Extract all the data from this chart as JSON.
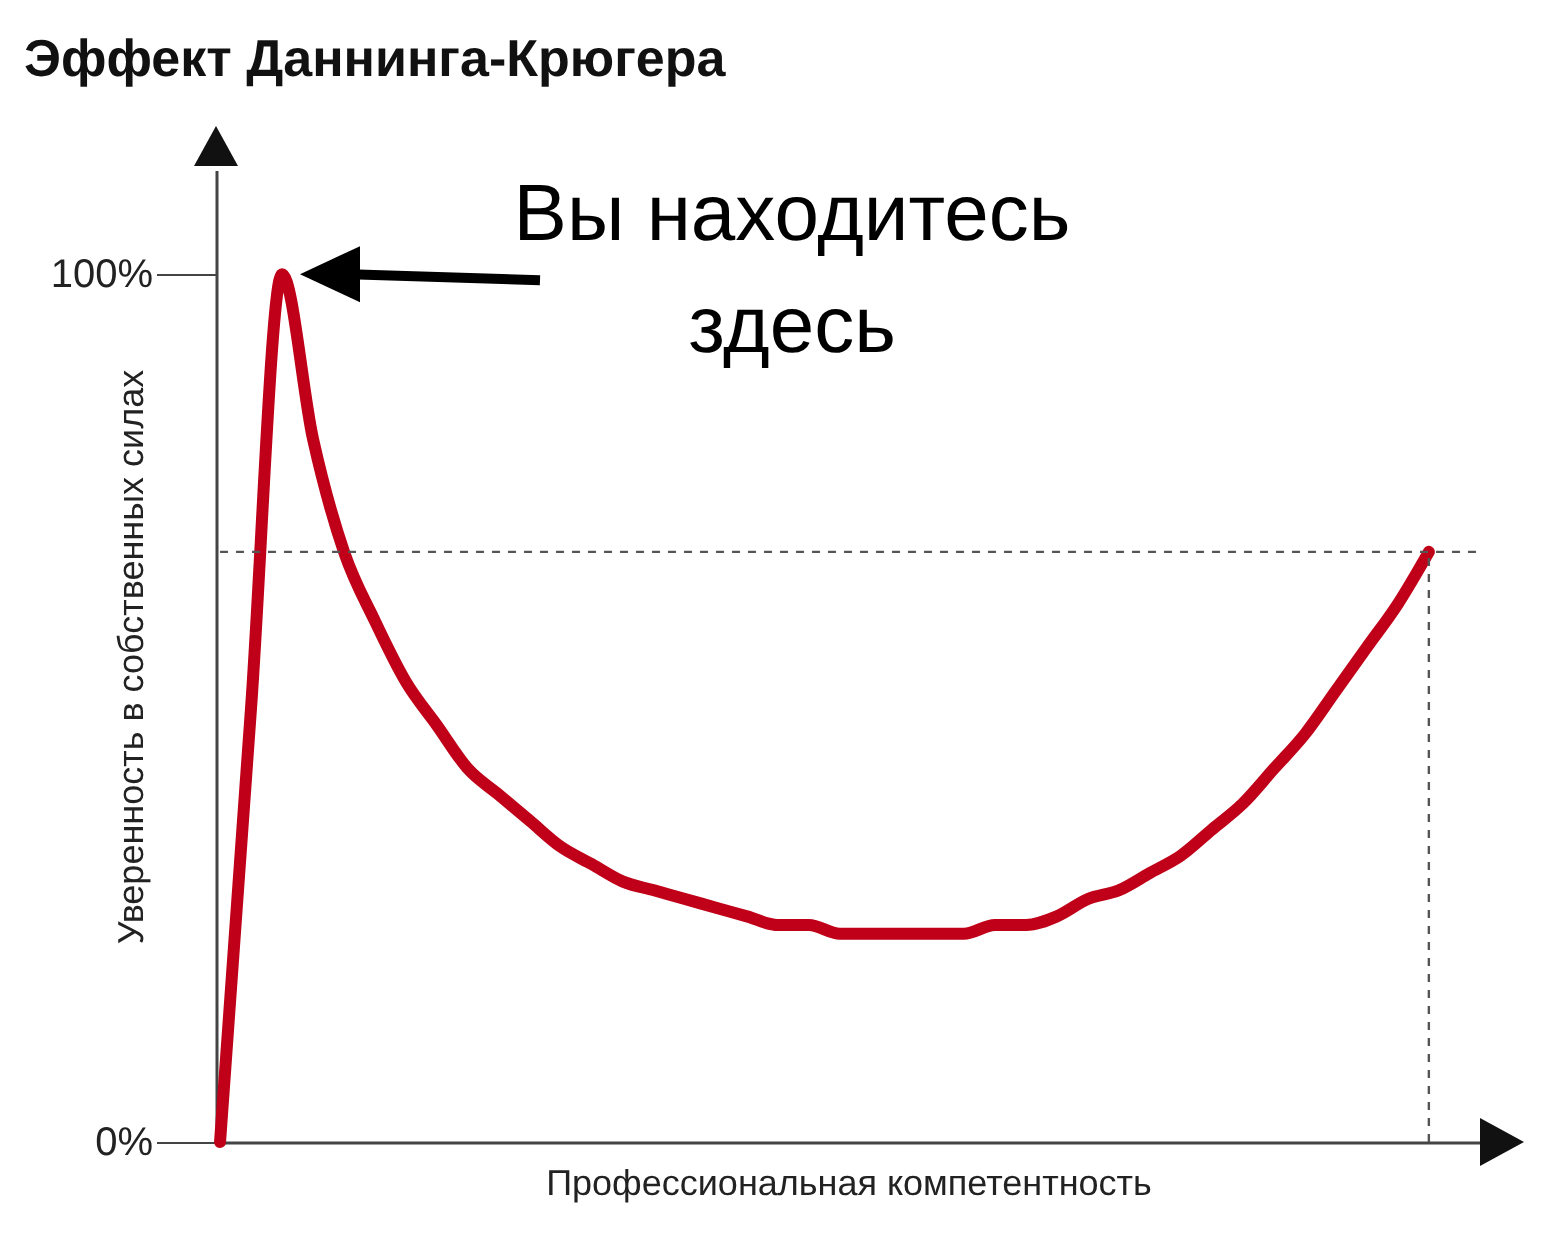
{
  "chart_data": {
    "type": "line",
    "title": "Эффект Даннинга-Крюгера",
    "xlabel": "Профессиональная компетентность",
    "ylabel": "Уверенность в собственных силах",
    "categories": [
      null,
      null,
      null,
      null,
      null,
      null,
      null,
      null,
      null,
      null,
      null,
      null,
      null,
      null,
      null,
      null,
      null,
      null,
      null,
      null,
      null,
      null,
      null,
      null,
      null,
      null,
      null,
      null,
      null,
      null,
      null,
      null,
      null,
      null,
      null,
      null,
      null,
      null,
      null,
      null
    ],
    "series": [
      {
        "color": "#c00018",
        "values": [
          0,
          50,
          100,
          81,
          68,
          60,
          53,
          48,
          43,
          40,
          37,
          34,
          32,
          30,
          29,
          28,
          27,
          26,
          25,
          25,
          24,
          24,
          24,
          24,
          24,
          25,
          25,
          26,
          28,
          29,
          31,
          33,
          36,
          39,
          43,
          47,
          52,
          57,
          62,
          68
        ]
      }
    ],
    "ylim": [
      0,
      112
    ],
    "yticks": [
      {
        "value": 0,
        "label": "0%"
      },
      {
        "value": 100,
        "label": "100%"
      }
    ],
    "grid": false,
    "marker": "none",
    "line_style": "solid",
    "ref_lines": [
      {
        "axis": "y",
        "value": 68,
        "color": "#555555",
        "line_style": "dashed"
      }
    ],
    "annotations": [
      "Вы находитесь\nздесь"
    ]
  }
}
